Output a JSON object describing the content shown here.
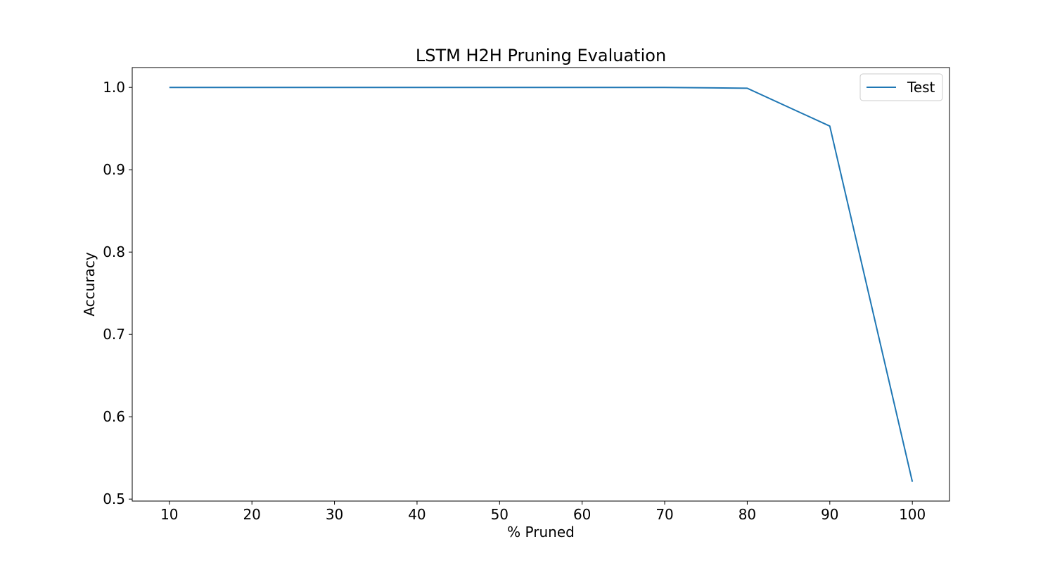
{
  "chart_data": {
    "type": "line",
    "title": "LSTM H2H Pruning Evaluation",
    "xlabel": "% Pruned",
    "ylabel": "Accuracy",
    "x": [
      10,
      20,
      30,
      40,
      50,
      60,
      70,
      80,
      90,
      100
    ],
    "xticks": [
      "10",
      "20",
      "30",
      "40",
      "50",
      "60",
      "70",
      "80",
      "90",
      "100"
    ],
    "yticks": [
      "0.5",
      "0.6",
      "0.7",
      "0.8",
      "0.9",
      "1.0"
    ],
    "ytick_values": [
      0.5,
      0.6,
      0.7,
      0.8,
      0.9,
      1.0
    ],
    "xlim": [
      5.5,
      104.5
    ],
    "ylim": [
      0.4976,
      1.0241
    ],
    "grid": false,
    "legend_position": "top-right",
    "series": [
      {
        "name": "Test",
        "color": "#1f77b4",
        "values": [
          1.0,
          1.0,
          1.0,
          1.0,
          1.0,
          1.0,
          1.0,
          0.999,
          0.953,
          0.521
        ]
      }
    ]
  }
}
